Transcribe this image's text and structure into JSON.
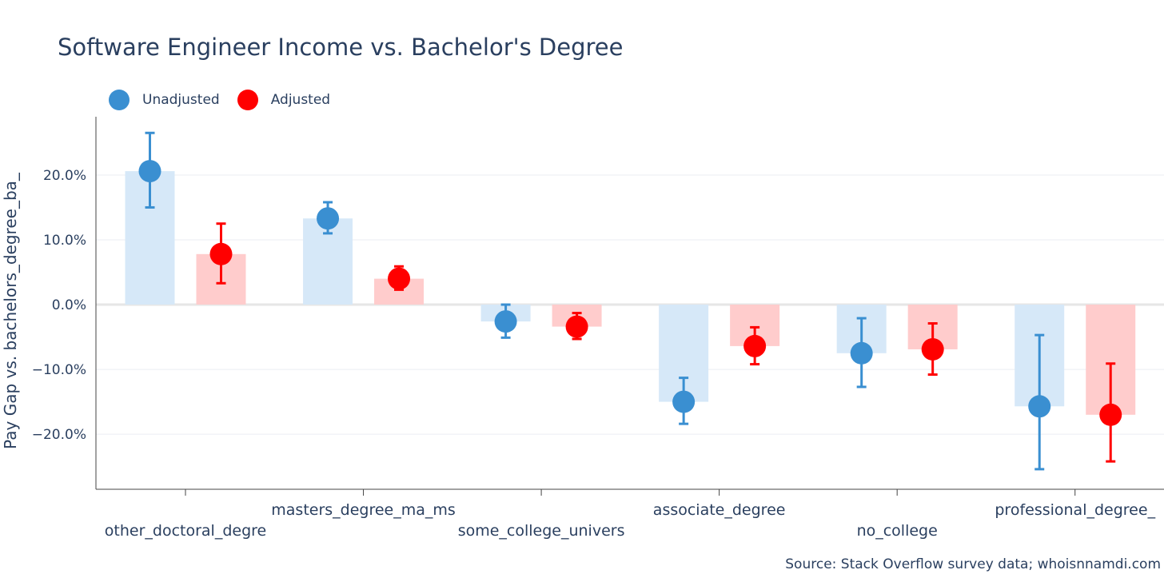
{
  "chart_data": {
    "type": "bar",
    "title": "Software Engineer Income vs. Bachelor's Degree",
    "xlabel": "",
    "ylabel": "Pay Gap vs. bachelors_degree_ba_",
    "ylim": [
      -28.5,
      29
    ],
    "y_ticks": [
      -20,
      -10,
      0,
      10,
      20
    ],
    "y_tick_labels": [
      "−20.0%",
      "−10.0%",
      "0.0%",
      "10.0%",
      "20.0%"
    ],
    "grid": true,
    "legend_position": "top-left",
    "categories": [
      "other_doctoral_degre",
      "masters_degree_ma_ms",
      "some_college_univers",
      "associate_degree",
      "no_college",
      "professional_degree_"
    ],
    "series": [
      {
        "name": "Unadjusted",
        "color": "#3a8fd1",
        "bar_color": "#d6e8f8",
        "values": [
          20.6,
          13.3,
          -2.6,
          -15.0,
          -7.5,
          -15.7
        ],
        "error_low": [
          15.0,
          11.0,
          -5.1,
          -18.4,
          -12.7,
          -25.4
        ],
        "error_high": [
          26.5,
          15.8,
          0.0,
          -11.3,
          -2.1,
          -4.7
        ]
      },
      {
        "name": "Adjusted",
        "color": "#ff0000",
        "bar_color": "#ffcccc",
        "values": [
          7.8,
          4.0,
          -3.4,
          -6.4,
          -6.9,
          -17.0
        ],
        "error_low": [
          3.3,
          2.3,
          -5.3,
          -9.2,
          -10.8,
          -24.2
        ],
        "error_high": [
          12.5,
          5.9,
          -1.3,
          -3.5,
          -2.9,
          -9.1
        ]
      }
    ]
  },
  "source_note": "Source: Stack Overflow survey data; whoisnnamdi.com"
}
